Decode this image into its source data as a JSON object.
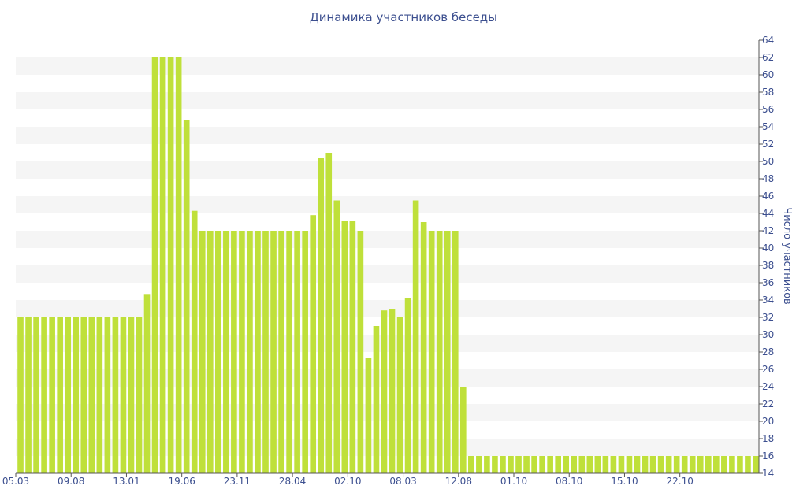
{
  "colors": {
    "bar": "#bfe03a",
    "band": "#f5f5f5",
    "text": "#3c4f8f",
    "axis": "#555555"
  },
  "chart_data": {
    "type": "bar",
    "title": "Динамика участников беседы",
    "ylabel": "Число участников",
    "xlabel": "",
    "ylim": [
      14,
      64
    ],
    "ytick_step": 2,
    "grid": "alternating horizontal bands",
    "x_tick_labels": [
      {
        "label": "05.03",
        "bar_index": 0
      },
      {
        "label": "09.08",
        "bar_index": 7
      },
      {
        "label": "13.01",
        "bar_index": 14
      },
      {
        "label": "19.06",
        "bar_index": 21
      },
      {
        "label": "23.11",
        "bar_index": 28
      },
      {
        "label": "28.04",
        "bar_index": 35
      },
      {
        "label": "02.10",
        "bar_index": 42
      },
      {
        "label": "08.03",
        "bar_index": 49
      },
      {
        "label": "12.08",
        "bar_index": 56
      },
      {
        "label": "01.10",
        "bar_index": 63
      },
      {
        "label": "08.10",
        "bar_index": 70
      },
      {
        "label": "15.10",
        "bar_index": 77
      },
      {
        "label": "22.10",
        "bar_index": 84
      }
    ],
    "values": [
      32,
      32,
      32,
      32,
      32,
      32,
      32,
      32,
      32,
      32,
      32,
      32,
      32,
      32,
      32,
      32,
      34.7,
      62,
      62,
      62,
      62,
      54.8,
      44.3,
      42,
      42,
      42,
      42,
      42,
      42,
      42,
      42,
      42,
      42,
      42,
      42,
      42,
      42,
      43.8,
      50.4,
      51,
      45.5,
      43.1,
      43.1,
      42,
      27.3,
      31,
      32.8,
      33,
      32,
      34.2,
      45.5,
      43,
      42,
      42,
      42,
      42,
      24,
      16,
      16,
      16,
      16,
      16,
      16,
      16,
      16,
      16,
      16,
      16,
      16,
      16,
      16,
      16,
      16,
      16,
      16,
      16,
      16,
      16,
      16,
      16,
      16,
      16,
      16,
      16,
      16,
      16,
      16,
      16,
      16,
      16,
      16,
      16,
      16,
      16
    ]
  }
}
